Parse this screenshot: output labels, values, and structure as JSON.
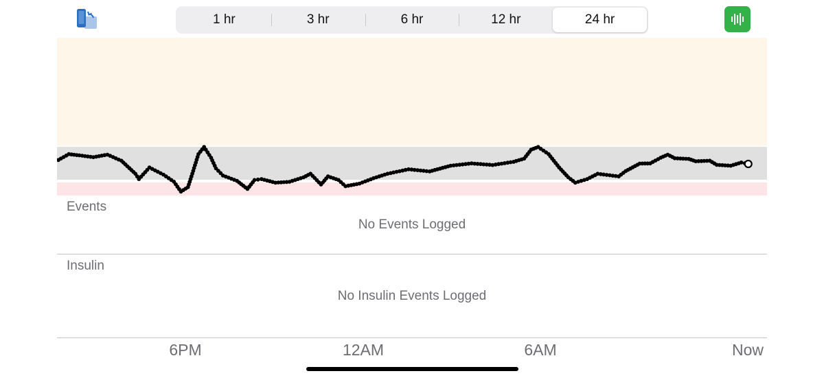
{
  "header": {
    "rotate_icon": "rotate-screen-icon",
    "time_ranges": [
      {
        "label": "1 hr",
        "selected": false
      },
      {
        "label": "3 hr",
        "selected": false
      },
      {
        "label": "6 hr",
        "selected": false
      },
      {
        "label": "12 hr",
        "selected": false
      },
      {
        "label": "24 hr",
        "selected": true
      }
    ],
    "stats_icon": "bar-chart-icon",
    "stats_color": "#34b24a"
  },
  "colors": {
    "high_zone": "#fef6e9",
    "target_zone": "#e0e0e0",
    "low_zone": "#fde4e6",
    "trace": "#000000"
  },
  "chart_data": {
    "type": "scatter",
    "title": "",
    "xlabel": "",
    "ylabel": "",
    "x_ticks": [
      "6PM",
      "12AM",
      "6AM",
      "Now"
    ],
    "y_range_visible": false,
    "series": [
      {
        "points": [
          [
            0,
            0.22
          ],
          [
            0.015,
            0.55
          ],
          [
            0.03,
            0.48
          ],
          [
            0.05,
            0.38
          ],
          [
            0.07,
            0.52
          ],
          [
            0.09,
            0.18
          ],
          [
            0.11,
            -0.55
          ],
          [
            0.115,
            -0.85
          ],
          [
            0.13,
            -0.2
          ],
          [
            0.15,
            -0.6
          ],
          [
            0.165,
            -1.0
          ],
          [
            0.175,
            -1.55
          ],
          [
            0.185,
            -1.3
          ],
          [
            0.19,
            -0.7
          ],
          [
            0.2,
            0.55
          ],
          [
            0.208,
            0.95
          ],
          [
            0.218,
            0.35
          ],
          [
            0.225,
            -0.25
          ],
          [
            0.235,
            -0.65
          ],
          [
            0.255,
            -0.95
          ],
          [
            0.27,
            -1.4
          ],
          [
            0.28,
            -0.9
          ],
          [
            0.29,
            -0.85
          ],
          [
            0.31,
            -1.05
          ],
          [
            0.33,
            -1.0
          ],
          [
            0.35,
            -0.75
          ],
          [
            0.36,
            -0.55
          ],
          [
            0.375,
            -1.15
          ],
          [
            0.385,
            -0.7
          ],
          [
            0.4,
            -0.9
          ],
          [
            0.41,
            -1.25
          ],
          [
            0.43,
            -1.1
          ],
          [
            0.45,
            -0.8
          ],
          [
            0.47,
            -0.55
          ],
          [
            0.5,
            -0.3
          ],
          [
            0.53,
            -0.42
          ],
          [
            0.56,
            -0.1
          ],
          [
            0.59,
            0.03
          ],
          [
            0.62,
            -0.06
          ],
          [
            0.65,
            0.12
          ],
          [
            0.665,
            0.3
          ],
          [
            0.675,
            0.8
          ],
          [
            0.685,
            0.95
          ],
          [
            0.7,
            0.55
          ],
          [
            0.715,
            -0.2
          ],
          [
            0.728,
            -0.75
          ],
          [
            0.738,
            -1.05
          ],
          [
            0.755,
            -0.85
          ],
          [
            0.77,
            -0.55
          ],
          [
            0.8,
            -0.7
          ],
          [
            0.81,
            -0.4
          ],
          [
            0.83,
            0.02
          ],
          [
            0.845,
            0.03
          ],
          [
            0.86,
            0.35
          ],
          [
            0.87,
            0.52
          ],
          [
            0.88,
            0.32
          ],
          [
            0.9,
            0.28
          ],
          [
            0.91,
            0.15
          ],
          [
            0.93,
            0.18
          ],
          [
            0.94,
            -0.05
          ],
          [
            0.96,
            -0.1
          ],
          [
            0.975,
            0.08
          ],
          [
            0.985,
            0.0
          ]
        ]
      }
    ],
    "current_marker": "open-circle-at-now"
  },
  "events": {
    "label": "Events",
    "empty_text": "No Events Logged"
  },
  "insulin": {
    "label": "Insulin",
    "empty_text": "No Insulin Events Logged"
  },
  "x_axis": {
    "labels": [
      "6PM",
      "12AM",
      "6AM",
      "Now"
    ]
  }
}
